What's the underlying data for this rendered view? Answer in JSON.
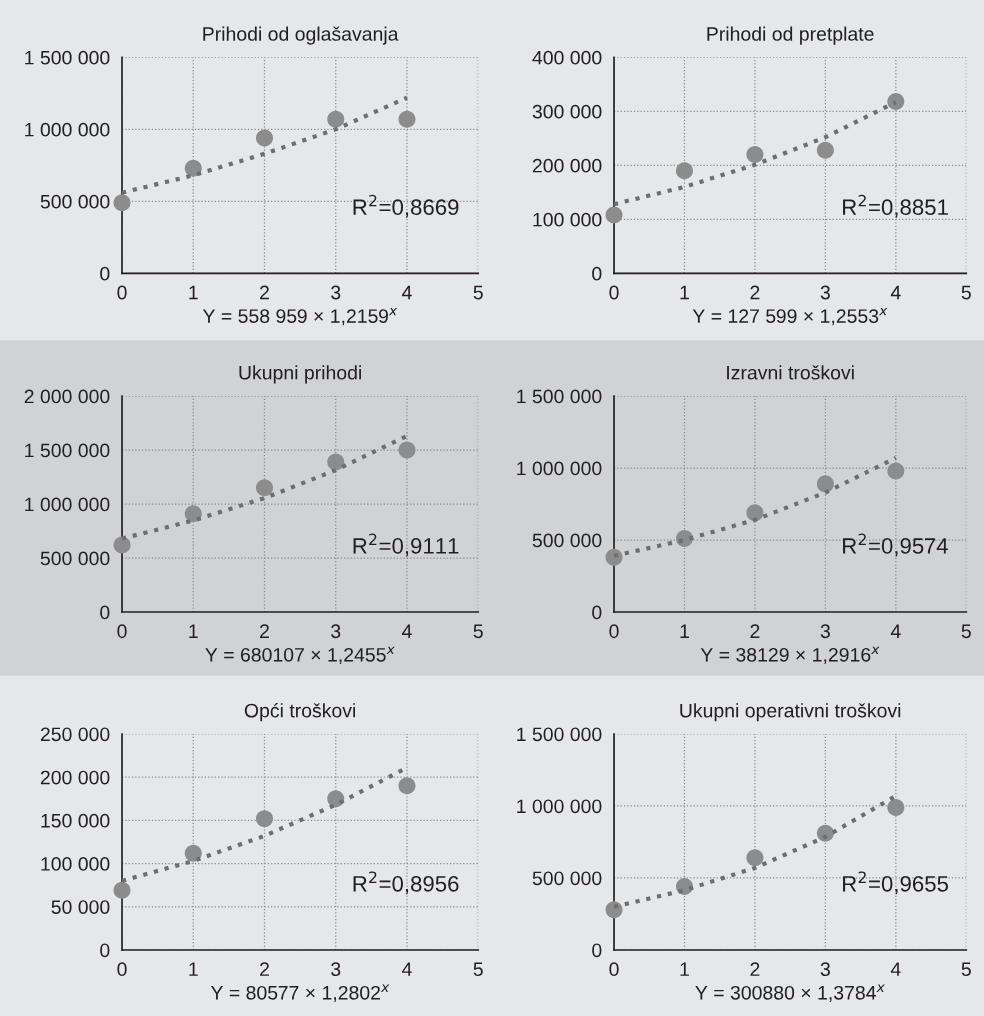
{
  "chart_data": [
    {
      "type": "scatter",
      "title": "Prihodi od oglašavanja",
      "xlabel": "Y = 558 959 × 1,2159$^{x}$",
      "annotations": [
        "R$^{2}$=0,8669"
      ],
      "xlim": [
        0,
        5
      ],
      "xticks": [
        0,
        1,
        2,
        3,
        4,
        5
      ],
      "ylim": [
        0,
        1500000
      ],
      "yticks": [
        0,
        {
          "value": 500000,
          "label": "500 000"
        },
        {
          "value": 1000000,
          "label": "1 000 000"
        },
        {
          "value": 1500000,
          "label": "1 500 000"
        }
      ],
      "grid": true,
      "legend": false,
      "series": [
        {
          "color": "#8c8c8c",
          "marker": "circle",
          "x": [
            0,
            1,
            2,
            3,
            4
          ],
          "values": [
            490000,
            730000,
            940000,
            1070000,
            1070000
          ]
        },
        {
          "type": "line",
          "color": "#6d6e71",
          "line_style": "dotted",
          "marker": "none",
          "x": [
            0,
            1,
            2,
            3,
            4
          ],
          "values": [
            560000,
            680000,
            830000,
            1000000,
            1220000
          ]
        }
      ]
    },
    {
      "type": "scatter",
      "title": "Prihodi od pretplate",
      "xlabel": "Y = 127 599 × 1,2553$^{x}$",
      "annotations": [
        "R$^{2}$=0,8851"
      ],
      "xlim": [
        0,
        5
      ],
      "xticks": [
        0,
        1,
        2,
        3,
        4,
        5
      ],
      "ylim": [
        0,
        400000
      ],
      "yticks": [
        0,
        {
          "value": 100000,
          "label": "100 000"
        },
        {
          "value": 200000,
          "label": "200 000"
        },
        {
          "value": 300000,
          "label": "300 000"
        },
        {
          "value": 400000,
          "label": "400 000"
        }
      ],
      "grid": true,
      "legend": false,
      "series": [
        {
          "color": "#8c8c8c",
          "marker": "circle",
          "x": [
            0,
            1,
            2,
            3,
            4
          ],
          "values": [
            108000,
            190000,
            220000,
            228000,
            318000
          ]
        },
        {
          "type": "line",
          "color": "#6d6e71",
          "line_style": "dotted",
          "marker": "none",
          "x": [
            0,
            1,
            2,
            3,
            4
          ],
          "values": [
            128000,
            160000,
            201000,
            252000,
            317000
          ]
        }
      ]
    },
    {
      "type": "scatter",
      "title": "Ukupni prihodi",
      "xlabel": "Y = 680107 × 1,2455$^{x}$",
      "annotations": [
        "R$^{2}$=0,9111"
      ],
      "xlim": [
        0,
        5
      ],
      "xticks": [
        0,
        1,
        2,
        3,
        4,
        5
      ],
      "ylim": [
        0,
        2000000
      ],
      "yticks": [
        0,
        {
          "value": 500000,
          "label": "500 000"
        },
        {
          "value": 1000000,
          "label": "1 000 000"
        },
        {
          "value": 1500000,
          "label": "1 500 000"
        },
        {
          "value": 2000000,
          "label": "2 000 000"
        }
      ],
      "grid": true,
      "legend": false,
      "series": [
        {
          "color": "#8c8c8c",
          "marker": "circle",
          "x": [
            0,
            1,
            2,
            3,
            4
          ],
          "values": [
            620000,
            910000,
            1150000,
            1390000,
            1500000
          ]
        },
        {
          "type": "line",
          "color": "#6d6e71",
          "line_style": "dotted",
          "marker": "none",
          "x": [
            0,
            1,
            2,
            3,
            4
          ],
          "values": [
            680000,
            847000,
            1055000,
            1314000,
            1630000
          ]
        }
      ]
    },
    {
      "type": "scatter",
      "title": "Izravni troškovi",
      "xlabel": "Y = 38129 × 1,2916$^{x}$",
      "annotations": [
        "R$^{2}$=0,9574"
      ],
      "xlim": [
        0,
        5
      ],
      "xticks": [
        0,
        1,
        2,
        3,
        4,
        5
      ],
      "ylim": [
        0,
        1500000
      ],
      "yticks": [
        0,
        {
          "value": 500000,
          "label": "500 000"
        },
        {
          "value": 1000000,
          "label": "1 000 000"
        },
        {
          "value": 1500000,
          "label": "1 500 000"
        }
      ],
      "grid": true,
      "legend": false,
      "series": [
        {
          "color": "#8c8c8c",
          "marker": "circle",
          "x": [
            0,
            1,
            2,
            3,
            4
          ],
          "values": [
            380000,
            510000,
            690000,
            890000,
            980000
          ]
        },
        {
          "type": "line",
          "color": "#6d6e71",
          "line_style": "dotted",
          "marker": "none",
          "x": [
            0,
            1,
            2,
            3,
            4
          ],
          "values": [
            390000,
            500000,
            640000,
            830000,
            1070000
          ]
        }
      ]
    },
    {
      "type": "scatter",
      "title": "Opći troškovi",
      "xlabel": "Y = 80577 × 1,2802$^{x}$",
      "annotations": [
        "R$^{2}$=0,8956"
      ],
      "xlim": [
        0,
        5
      ],
      "xticks": [
        0,
        1,
        2,
        3,
        4,
        5
      ],
      "ylim": [
        0,
        250000
      ],
      "yticks": [
        0,
        {
          "value": 50000,
          "label": "50 000"
        },
        {
          "value": 100000,
          "label": "100 000"
        },
        {
          "value": 150000,
          "label": "150 000"
        },
        {
          "value": 200000,
          "label": "200 000"
        },
        {
          "value": 250000,
          "label": "250 000"
        }
      ],
      "grid": true,
      "legend": false,
      "series": [
        {
          "color": "#8c8c8c",
          "marker": "circle",
          "x": [
            0,
            1,
            2,
            3,
            4
          ],
          "values": [
            69000,
            112000,
            152000,
            175000,
            190000
          ]
        },
        {
          "type": "line",
          "color": "#6d6e71",
          "line_style": "dotted",
          "marker": "none",
          "x": [
            0,
            1,
            2,
            3,
            4
          ],
          "values": [
            80000,
            103000,
            132000,
            168000,
            211000
          ]
        }
      ]
    },
    {
      "type": "scatter",
      "title": "Ukupni operativni troškovi",
      "xlabel": "Y = 300880 × 1,3784$^{x}$",
      "annotations": [
        "R$^{2}$=0,9655"
      ],
      "xlim": [
        0,
        5
      ],
      "xticks": [
        0,
        1,
        2,
        3,
        4,
        5
      ],
      "ylim": [
        0,
        1500000
      ],
      "yticks": [
        0,
        {
          "value": 500000,
          "label": "500 000"
        },
        {
          "value": 1000000,
          "label": "1 000 000"
        },
        {
          "value": 1500000,
          "label": "1 500 000"
        }
      ],
      "grid": true,
      "legend": false,
      "series": [
        {
          "color": "#8c8c8c",
          "marker": "circle",
          "x": [
            0,
            1,
            2,
            3,
            4
          ],
          "values": [
            280000,
            440000,
            640000,
            810000,
            990000
          ]
        },
        {
          "type": "line",
          "color": "#6d6e71",
          "line_style": "dotted",
          "marker": "none",
          "x": [
            0,
            1,
            2,
            3,
            4
          ],
          "values": [
            300000,
            415000,
            570000,
            785000,
            1070000
          ]
        }
      ]
    }
  ]
}
